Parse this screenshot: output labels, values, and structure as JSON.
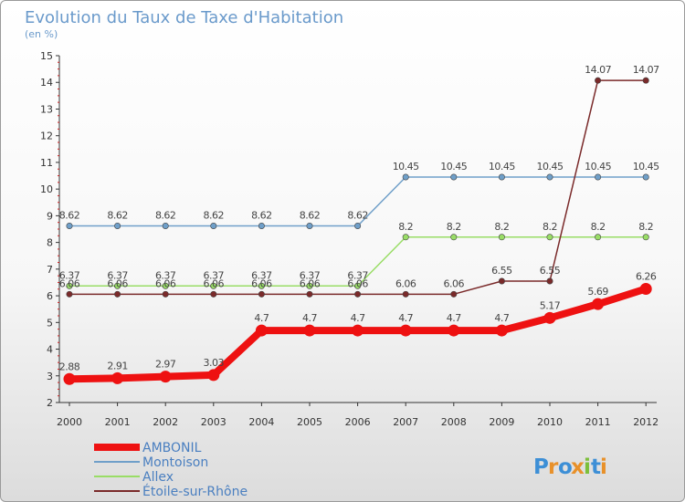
{
  "chart_data": {
    "type": "line",
    "title": "Evolution du Taux de Taxe d'Habitation",
    "subtitle": "(en %)",
    "categories": [
      "2000",
      "2001",
      "2002",
      "2003",
      "2004",
      "2005",
      "2006",
      "2007",
      "2008",
      "2009",
      "2010",
      "2011",
      "2012"
    ],
    "ylim": [
      2,
      15
    ],
    "yticks": [
      2,
      3,
      4,
      5,
      6,
      7,
      8,
      9,
      10,
      11,
      12,
      13,
      14,
      15
    ],
    "grid": false,
    "legend_position": "bottom-left",
    "series": [
      {
        "name": "AMBONIL",
        "color": "#ee1111",
        "values": [
          2.88,
          2.91,
          2.97,
          3.03,
          4.7,
          4.7,
          4.7,
          4.7,
          4.7,
          4.7,
          5.17,
          5.69,
          6.26
        ],
        "labels": [
          "2.88",
          "2.91",
          "2.97",
          "3.03",
          "4.7",
          "4.7",
          "4.7",
          "4.7",
          "4.7",
          "4.7",
          "5.17",
          "5.69",
          "6.26"
        ]
      },
      {
        "name": "Montoison",
        "color": "#6f9fc9",
        "values": [
          8.62,
          8.62,
          8.62,
          8.62,
          8.62,
          8.62,
          8.62,
          10.45,
          10.45,
          10.45,
          10.45,
          10.45,
          10.45
        ],
        "labels": [
          "8.62",
          "8.62",
          "8.62",
          "8.62",
          "8.62",
          "8.62",
          "8.62",
          "10.45",
          "10.45",
          "10.45",
          "10.45",
          "10.45",
          "10.45"
        ]
      },
      {
        "name": "Allex",
        "color": "#99dd66",
        "values": [
          6.37,
          6.37,
          6.37,
          6.37,
          6.37,
          6.37,
          6.37,
          8.2,
          8.2,
          8.2,
          8.2,
          8.2,
          8.2
        ],
        "labels": [
          "6.37",
          "6.37",
          "6.37",
          "6.37",
          "6.37",
          "6.37",
          "6.37",
          "8.2",
          "8.2",
          "8.2",
          "8.2",
          "8.2",
          "8.2"
        ]
      },
      {
        "name": "Étoile-sur-Rhône",
        "color": "#7a2a2a",
        "values": [
          6.06,
          6.06,
          6.06,
          6.06,
          6.06,
          6.06,
          6.06,
          6.06,
          6.06,
          6.55,
          6.55,
          14.07,
          14.07
        ],
        "labels": [
          "6.06",
          "6.06",
          "6.06",
          "6.06",
          "6.06",
          "6.06",
          "6.06",
          "6.06",
          "6.06",
          "6.55",
          "6.55",
          "14.07",
          "14.07"
        ]
      }
    ]
  },
  "logo": {
    "text": "Proxiti",
    "letters": [
      "P",
      "r",
      "o",
      "x",
      "i",
      "t",
      "i"
    ],
    "colors": [
      "#3d8fd6",
      "#e8912a",
      "#3d8fd6",
      "#e8912a",
      "#7cbf3a",
      "#3d8fd6",
      "#e8912a"
    ]
  }
}
